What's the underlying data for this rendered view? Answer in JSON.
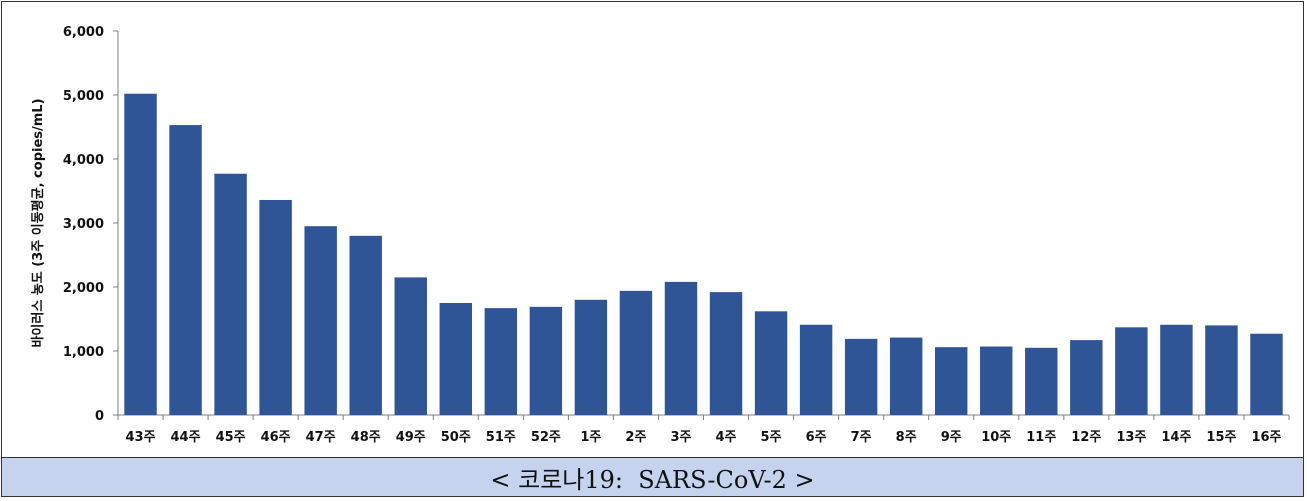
{
  "chart_data": {
    "type": "bar",
    "title": "",
    "xlabel": "",
    "ylabel": "바이러스 농도 (3주 이동평균, copies/mL)",
    "ylim": [
      0,
      6000
    ],
    "yticks": [
      "0",
      "1,000",
      "2,000",
      "3,000",
      "4,000",
      "5,000",
      "6,000"
    ],
    "ytick_values": [
      0,
      1000,
      2000,
      3000,
      4000,
      5000,
      6000
    ],
    "grid": false,
    "legend": "none",
    "bar_color": "#2f5597",
    "categories": [
      "43주",
      "44주",
      "45주",
      "46주",
      "47주",
      "48주",
      "49주",
      "50주",
      "51주",
      "52주",
      "1주",
      "2주",
      "3주",
      "4주",
      "5주",
      "6주",
      "7주",
      "8주",
      "9주",
      "10주",
      "11주",
      "12주",
      "13주",
      "14주",
      "15주",
      "16주"
    ],
    "values": [
      5020,
      4530,
      3770,
      3360,
      2950,
      2800,
      2150,
      1750,
      1670,
      1690,
      1800,
      1940,
      2080,
      1920,
      1620,
      1410,
      1190,
      1210,
      1060,
      1070,
      1050,
      1170,
      1370,
      1410,
      1400,
      1270
    ]
  },
  "caption": {
    "text": "< 코로나19:  SARS-CoV-2 >",
    "background": "#c5d3ef"
  }
}
